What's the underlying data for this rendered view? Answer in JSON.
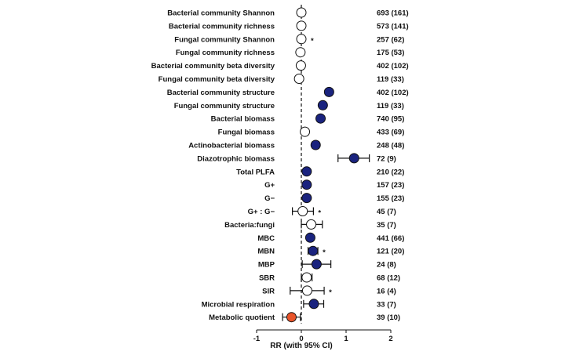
{
  "chart_data": {
    "type": "forest",
    "xlabel": "RR (with 95% CI)",
    "xlim": [
      -1,
      2
    ],
    "x_ticks": [
      "-1",
      "0",
      "1",
      "2"
    ],
    "reference_line": 0,
    "colors": {
      "positive": "#1a237e",
      "neutral": "#ffffff",
      "negative": "#e8542a",
      "stroke": "#111111"
    },
    "rows": [
      {
        "label": "Bacterial community Shannon",
        "rr": 0.0,
        "ci": [
          -0.02,
          0.02
        ],
        "fill": "neutral",
        "sig": "",
        "n": "693 (161)"
      },
      {
        "label": "Bacterial community richness",
        "rr": 0.0,
        "ci": [
          -0.02,
          0.02
        ],
        "fill": "neutral",
        "sig": "",
        "n": "573 (141)"
      },
      {
        "label": "Fungal community Shannon",
        "rr": 0.0,
        "ci": [
          -0.03,
          0.03
        ],
        "fill": "neutral",
        "sig": "*",
        "n": "257 (62)"
      },
      {
        "label": "Fungal community richness",
        "rr": -0.02,
        "ci": [
          -0.08,
          0.04
        ],
        "fill": "neutral",
        "sig": "",
        "n": "175 (53)"
      },
      {
        "label": "Bacterial community beta diversity",
        "rr": -0.01,
        "ci": [
          -0.04,
          0.02
        ],
        "fill": "neutral",
        "sig": "",
        "n": "402 (102)"
      },
      {
        "label": "Fungal community beta diversity",
        "rr": -0.05,
        "ci": [
          -0.08,
          -0.02
        ],
        "fill": "neutral",
        "sig": "",
        "n": "119 (33)"
      },
      {
        "label": "Bacterial community structure",
        "rr": 0.62,
        "ci": [
          0.58,
          0.66
        ],
        "fill": "positive",
        "sig": "",
        "n": "402 (102)"
      },
      {
        "label": "Fungal community structure",
        "rr": 0.48,
        "ci": [
          0.42,
          0.54
        ],
        "fill": "positive",
        "sig": "",
        "n": "119 (33)"
      },
      {
        "label": "Bacterial biomass",
        "rr": 0.43,
        "ci": [
          0.38,
          0.48
        ],
        "fill": "positive",
        "sig": "",
        "n": "740 (95)"
      },
      {
        "label": "Fungal biomass",
        "rr": 0.08,
        "ci": [
          0.04,
          0.12
        ],
        "fill": "neutral",
        "sig": "",
        "n": "433 (69)"
      },
      {
        "label": "Actinobacterial biomass",
        "rr": 0.32,
        "ci": [
          0.25,
          0.39
        ],
        "fill": "positive",
        "sig": "",
        "n": "248 (48)"
      },
      {
        "label": "Diazotrophic biomass",
        "rr": 1.18,
        "ci": [
          0.82,
          1.52
        ],
        "fill": "positive",
        "sig": "",
        "n": "72 (9)"
      },
      {
        "label": "Total PLFA",
        "rr": 0.12,
        "ci": [
          0.06,
          0.18
        ],
        "fill": "positive",
        "sig": "",
        "n": "210 (22)"
      },
      {
        "label": "G+",
        "rr": 0.12,
        "ci": [
          0.06,
          0.18
        ],
        "fill": "positive",
        "sig": "",
        "n": "157 (23)"
      },
      {
        "label": "G−",
        "rr": 0.12,
        "ci": [
          0.06,
          0.18
        ],
        "fill": "positive",
        "sig": "",
        "n": "155 (23)"
      },
      {
        "label": "G+ : G−",
        "rr": 0.03,
        "ci": [
          -0.2,
          0.27
        ],
        "fill": "neutral",
        "sig": "*",
        "n": "45 (7)"
      },
      {
        "label": "Bacteria:fungi",
        "rr": 0.22,
        "ci": [
          0.0,
          0.47
        ],
        "fill": "neutral",
        "sig": "",
        "n": "35 (7)"
      },
      {
        "label": "MBC",
        "rr": 0.2,
        "ci": [
          0.15,
          0.25
        ],
        "fill": "positive",
        "sig": "",
        "n": "441 (66)"
      },
      {
        "label": "MBN",
        "rr": 0.26,
        "ci": [
          0.15,
          0.37
        ],
        "fill": "positive",
        "sig": "*",
        "n": "121 (20)"
      },
      {
        "label": "MBP",
        "rr": 0.34,
        "ci": [
          0.02,
          0.66
        ],
        "fill": "positive",
        "sig": "",
        "n": "24 (8)"
      },
      {
        "label": "SBR",
        "rr": 0.12,
        "ci": [
          0.0,
          0.24
        ],
        "fill": "neutral",
        "sig": "",
        "n": "68 (12)"
      },
      {
        "label": "SIR",
        "rr": 0.13,
        "ci": [
          -0.25,
          0.51
        ],
        "fill": "neutral",
        "sig": "*",
        "n": "16 (4)"
      },
      {
        "label": "Microbial respiration",
        "rr": 0.28,
        "ci": [
          0.05,
          0.5
        ],
        "fill": "positive",
        "sig": "",
        "n": "33 (7)"
      },
      {
        "label": "Metabolic quotient",
        "rr": -0.22,
        "ci": [
          -0.42,
          -0.02
        ],
        "fill": "negative",
        "sig": "",
        "n": "39 (10)"
      }
    ]
  }
}
